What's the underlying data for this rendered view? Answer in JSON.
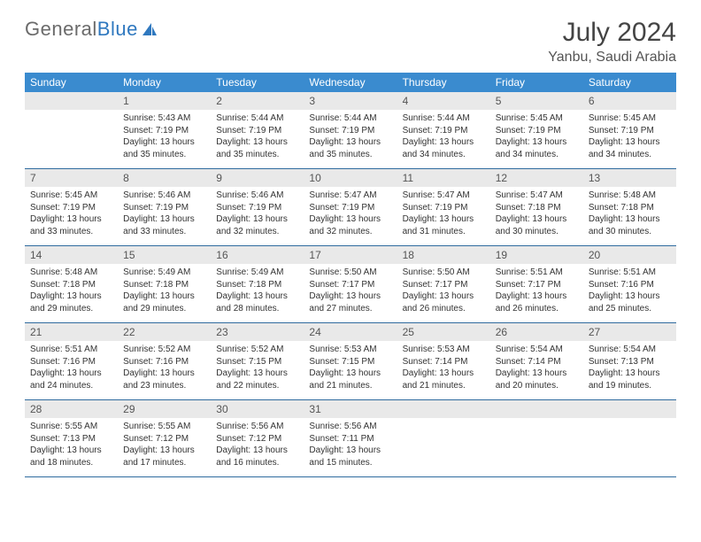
{
  "brand": {
    "part1": "General",
    "part2": "Blue"
  },
  "title": "July 2024",
  "location": "Yanbu, Saudi Arabia",
  "colors": {
    "header_bg": "#3a8bcf",
    "header_text": "#ffffff",
    "daynum_bg": "#e9e9e9",
    "row_border": "#2f6b9e",
    "body_text": "#333333",
    "title_text": "#444444",
    "brand_gray": "#6b6b6b",
    "brand_blue": "#2f78bf"
  },
  "weekdays": [
    "Sunday",
    "Monday",
    "Tuesday",
    "Wednesday",
    "Thursday",
    "Friday",
    "Saturday"
  ],
  "weeks": [
    [
      {
        "n": "",
        "lines": []
      },
      {
        "n": "1",
        "lines": [
          "Sunrise: 5:43 AM",
          "Sunset: 7:19 PM",
          "Daylight: 13 hours",
          "and 35 minutes."
        ]
      },
      {
        "n": "2",
        "lines": [
          "Sunrise: 5:44 AM",
          "Sunset: 7:19 PM",
          "Daylight: 13 hours",
          "and 35 minutes."
        ]
      },
      {
        "n": "3",
        "lines": [
          "Sunrise: 5:44 AM",
          "Sunset: 7:19 PM",
          "Daylight: 13 hours",
          "and 35 minutes."
        ]
      },
      {
        "n": "4",
        "lines": [
          "Sunrise: 5:44 AM",
          "Sunset: 7:19 PM",
          "Daylight: 13 hours",
          "and 34 minutes."
        ]
      },
      {
        "n": "5",
        "lines": [
          "Sunrise: 5:45 AM",
          "Sunset: 7:19 PM",
          "Daylight: 13 hours",
          "and 34 minutes."
        ]
      },
      {
        "n": "6",
        "lines": [
          "Sunrise: 5:45 AM",
          "Sunset: 7:19 PM",
          "Daylight: 13 hours",
          "and 34 minutes."
        ]
      }
    ],
    [
      {
        "n": "7",
        "lines": [
          "Sunrise: 5:45 AM",
          "Sunset: 7:19 PM",
          "Daylight: 13 hours",
          "and 33 minutes."
        ]
      },
      {
        "n": "8",
        "lines": [
          "Sunrise: 5:46 AM",
          "Sunset: 7:19 PM",
          "Daylight: 13 hours",
          "and 33 minutes."
        ]
      },
      {
        "n": "9",
        "lines": [
          "Sunrise: 5:46 AM",
          "Sunset: 7:19 PM",
          "Daylight: 13 hours",
          "and 32 minutes."
        ]
      },
      {
        "n": "10",
        "lines": [
          "Sunrise: 5:47 AM",
          "Sunset: 7:19 PM",
          "Daylight: 13 hours",
          "and 32 minutes."
        ]
      },
      {
        "n": "11",
        "lines": [
          "Sunrise: 5:47 AM",
          "Sunset: 7:19 PM",
          "Daylight: 13 hours",
          "and 31 minutes."
        ]
      },
      {
        "n": "12",
        "lines": [
          "Sunrise: 5:47 AM",
          "Sunset: 7:18 PM",
          "Daylight: 13 hours",
          "and 30 minutes."
        ]
      },
      {
        "n": "13",
        "lines": [
          "Sunrise: 5:48 AM",
          "Sunset: 7:18 PM",
          "Daylight: 13 hours",
          "and 30 minutes."
        ]
      }
    ],
    [
      {
        "n": "14",
        "lines": [
          "Sunrise: 5:48 AM",
          "Sunset: 7:18 PM",
          "Daylight: 13 hours",
          "and 29 minutes."
        ]
      },
      {
        "n": "15",
        "lines": [
          "Sunrise: 5:49 AM",
          "Sunset: 7:18 PM",
          "Daylight: 13 hours",
          "and 29 minutes."
        ]
      },
      {
        "n": "16",
        "lines": [
          "Sunrise: 5:49 AM",
          "Sunset: 7:18 PM",
          "Daylight: 13 hours",
          "and 28 minutes."
        ]
      },
      {
        "n": "17",
        "lines": [
          "Sunrise: 5:50 AM",
          "Sunset: 7:17 PM",
          "Daylight: 13 hours",
          "and 27 minutes."
        ]
      },
      {
        "n": "18",
        "lines": [
          "Sunrise: 5:50 AM",
          "Sunset: 7:17 PM",
          "Daylight: 13 hours",
          "and 26 minutes."
        ]
      },
      {
        "n": "19",
        "lines": [
          "Sunrise: 5:51 AM",
          "Sunset: 7:17 PM",
          "Daylight: 13 hours",
          "and 26 minutes."
        ]
      },
      {
        "n": "20",
        "lines": [
          "Sunrise: 5:51 AM",
          "Sunset: 7:16 PM",
          "Daylight: 13 hours",
          "and 25 minutes."
        ]
      }
    ],
    [
      {
        "n": "21",
        "lines": [
          "Sunrise: 5:51 AM",
          "Sunset: 7:16 PM",
          "Daylight: 13 hours",
          "and 24 minutes."
        ]
      },
      {
        "n": "22",
        "lines": [
          "Sunrise: 5:52 AM",
          "Sunset: 7:16 PM",
          "Daylight: 13 hours",
          "and 23 minutes."
        ]
      },
      {
        "n": "23",
        "lines": [
          "Sunrise: 5:52 AM",
          "Sunset: 7:15 PM",
          "Daylight: 13 hours",
          "and 22 minutes."
        ]
      },
      {
        "n": "24",
        "lines": [
          "Sunrise: 5:53 AM",
          "Sunset: 7:15 PM",
          "Daylight: 13 hours",
          "and 21 minutes."
        ]
      },
      {
        "n": "25",
        "lines": [
          "Sunrise: 5:53 AM",
          "Sunset: 7:14 PM",
          "Daylight: 13 hours",
          "and 21 minutes."
        ]
      },
      {
        "n": "26",
        "lines": [
          "Sunrise: 5:54 AM",
          "Sunset: 7:14 PM",
          "Daylight: 13 hours",
          "and 20 minutes."
        ]
      },
      {
        "n": "27",
        "lines": [
          "Sunrise: 5:54 AM",
          "Sunset: 7:13 PM",
          "Daylight: 13 hours",
          "and 19 minutes."
        ]
      }
    ],
    [
      {
        "n": "28",
        "lines": [
          "Sunrise: 5:55 AM",
          "Sunset: 7:13 PM",
          "Daylight: 13 hours",
          "and 18 minutes."
        ]
      },
      {
        "n": "29",
        "lines": [
          "Sunrise: 5:55 AM",
          "Sunset: 7:12 PM",
          "Daylight: 13 hours",
          "and 17 minutes."
        ]
      },
      {
        "n": "30",
        "lines": [
          "Sunrise: 5:56 AM",
          "Sunset: 7:12 PM",
          "Daylight: 13 hours",
          "and 16 minutes."
        ]
      },
      {
        "n": "31",
        "lines": [
          "Sunrise: 5:56 AM",
          "Sunset: 7:11 PM",
          "Daylight: 13 hours",
          "and 15 minutes."
        ]
      },
      {
        "n": "",
        "lines": []
      },
      {
        "n": "",
        "lines": []
      },
      {
        "n": "",
        "lines": []
      }
    ]
  ]
}
